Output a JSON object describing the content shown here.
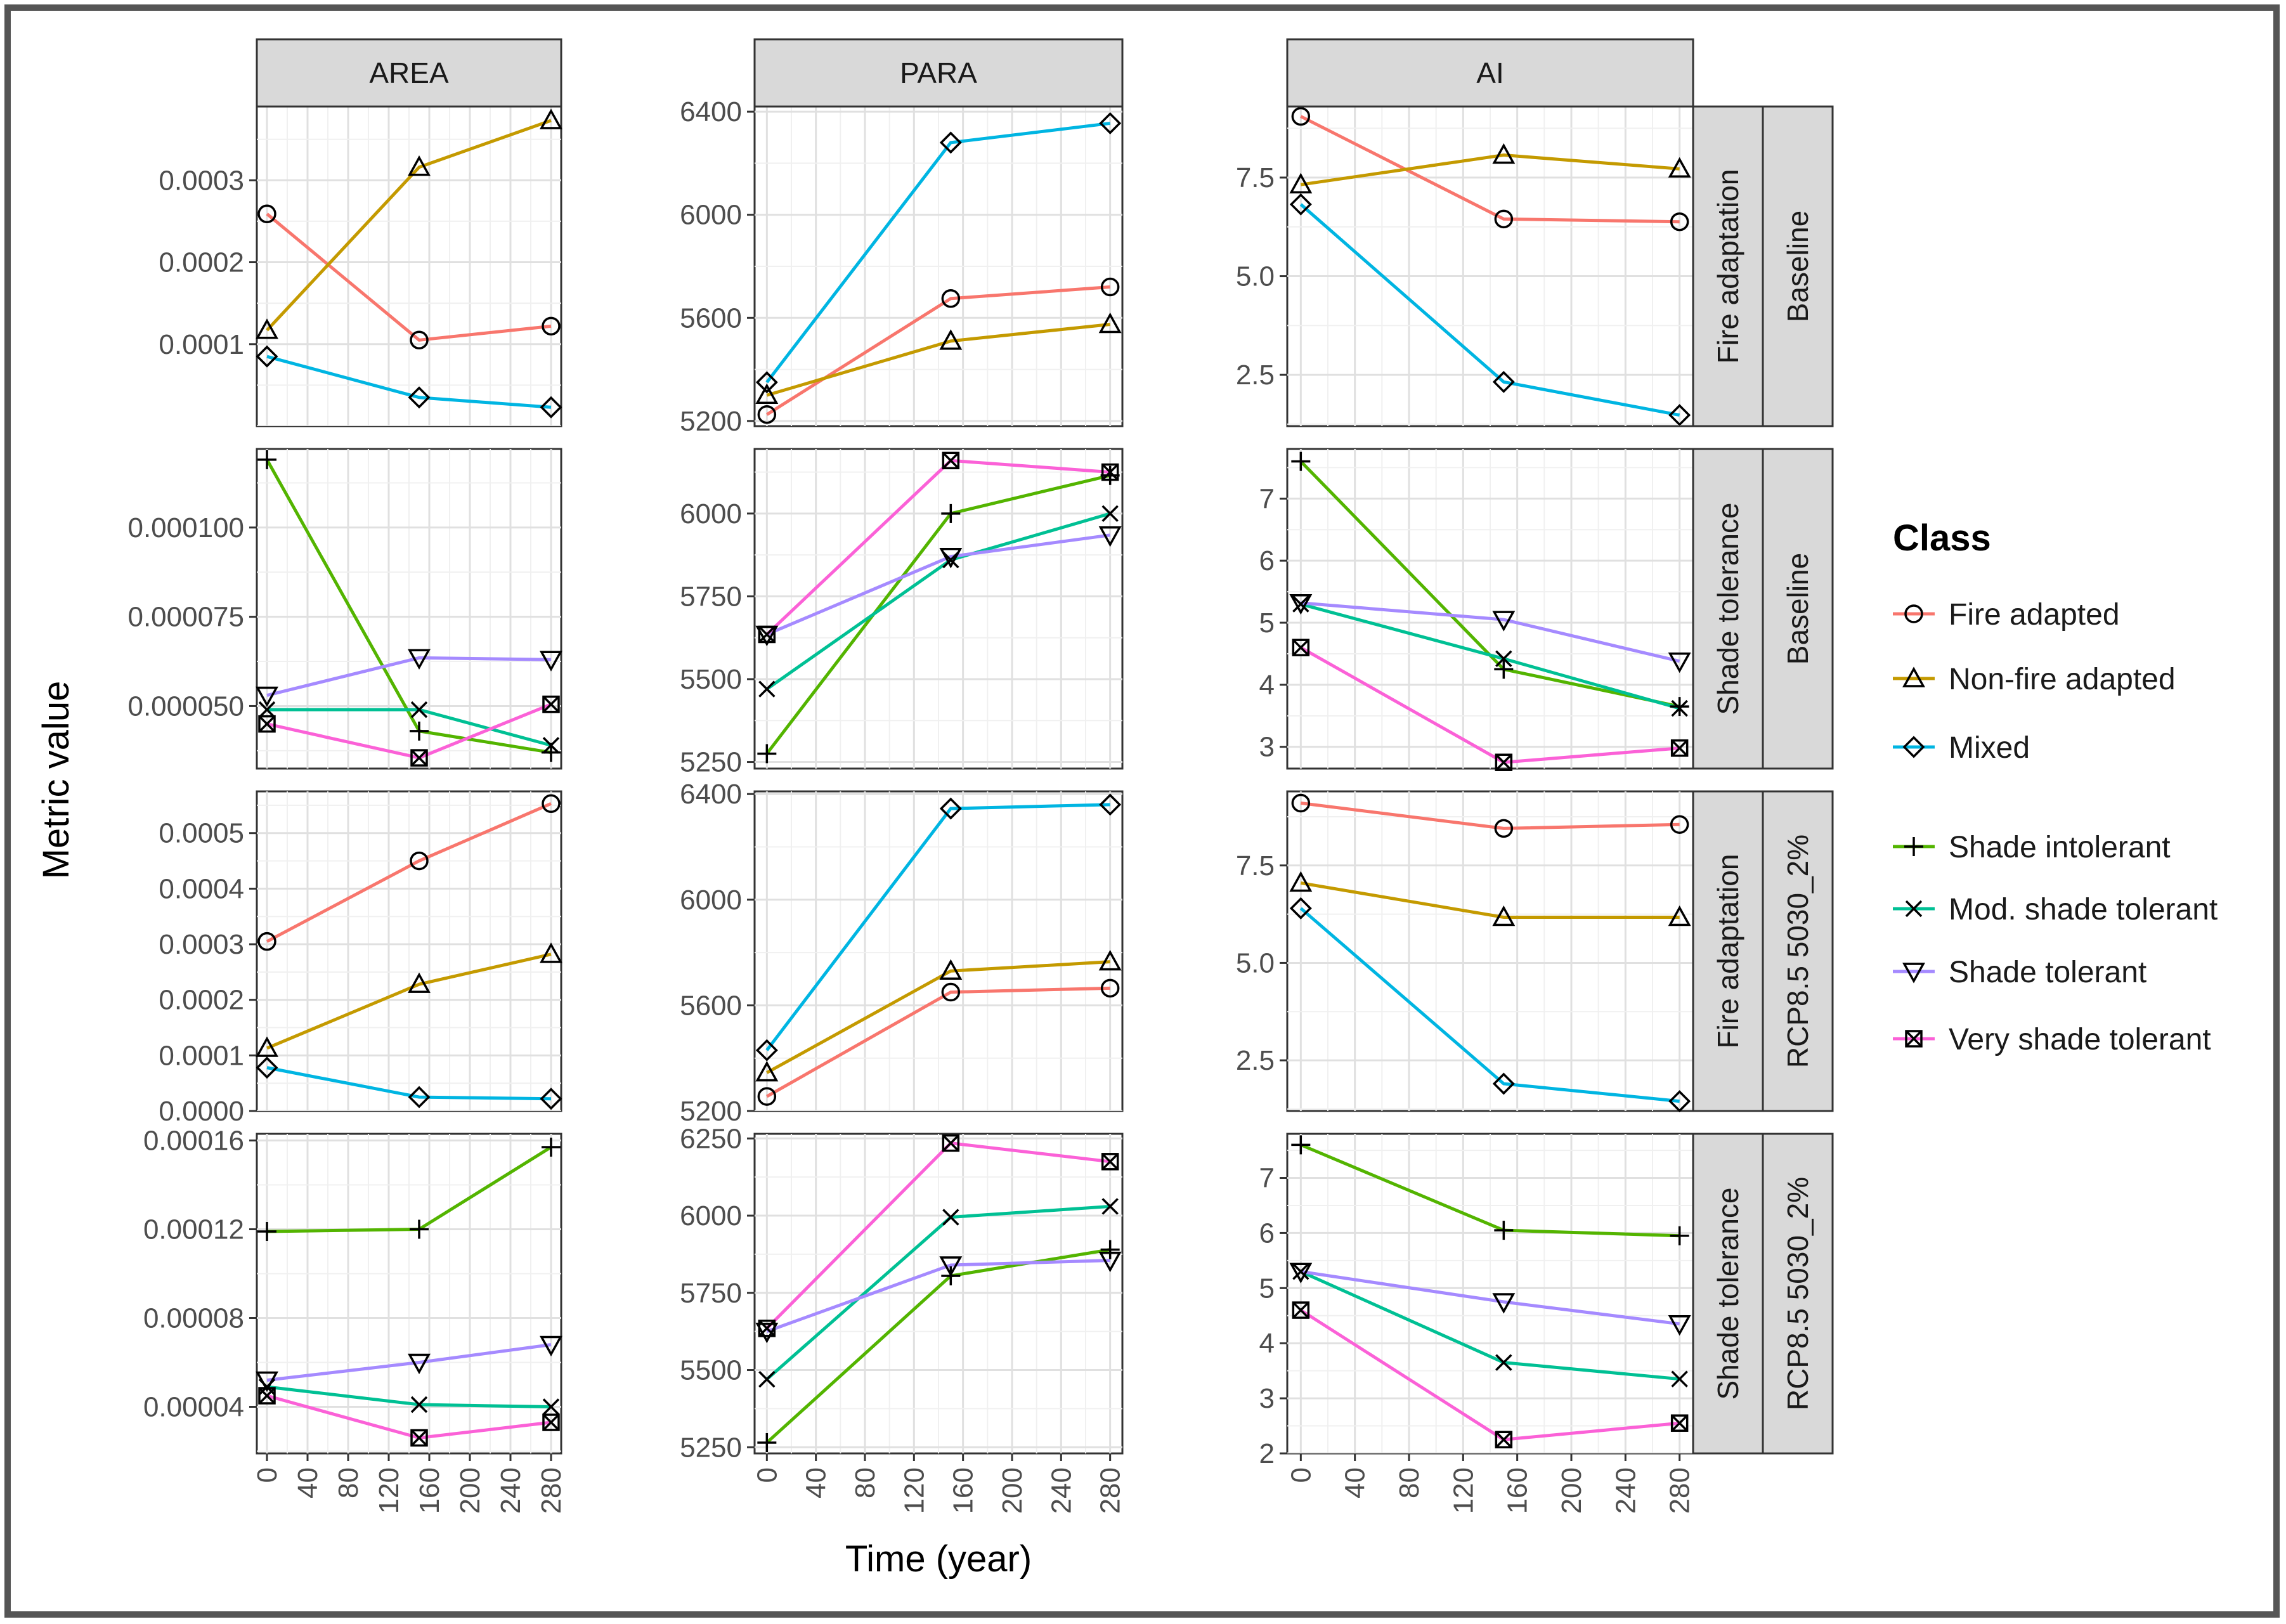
{
  "chart_data": {
    "type": "line",
    "xlabel": "Time (year)",
    "ylabel": "Metric value",
    "x_ticks": [
      0,
      40,
      80,
      120,
      160,
      200,
      240,
      280
    ],
    "xlim": [
      -10,
      290
    ],
    "x": [
      0,
      150,
      280
    ],
    "legend": {
      "title": "Class",
      "position": "right",
      "groups": [
        [
          "Fire adapted",
          "Non-fire adapted",
          "Mixed"
        ],
        [
          "Shade intolerant",
          "Mod. shade tolerant",
          "Shade tolerant",
          "Very shade tolerant"
        ]
      ]
    },
    "colors": {
      "Fire adapted": "#f8766d",
      "Non-fire adapted": "#c49a00",
      "Mixed": "#00b5e2",
      "Shade intolerant": "#53b400",
      "Mod. shade tolerant": "#00c094",
      "Shade tolerant": "#a58aff",
      "Very shade tolerant": "#fb61d7"
    },
    "markers": {
      "Fire adapted": "circle",
      "Non-fire adapted": "triangle-up",
      "Mixed": "diamond",
      "Shade intolerant": "plus",
      "Mod. shade tolerant": "cross",
      "Shade tolerant": "triangle-down",
      "Very shade tolerant": "square-x"
    },
    "column_strips": [
      "AREA",
      "PARA",
      "AI"
    ],
    "row_strips": [
      [
        "Fire adaptation",
        "Baseline"
      ],
      [
        "Shade tolerance",
        "Baseline"
      ],
      [
        "Fire adaptation",
        "RCP8.5 5030_2%"
      ],
      [
        "Shade tolerance",
        "RCP8.5 5030_2%"
      ]
    ],
    "panels": [
      {
        "row": 0,
        "col": 0,
        "ylim": [
          0.0,
          0.00039
        ],
        "ticks": [
          0.0001,
          0.0002,
          0.0003
        ],
        "tick_labels": [
          "0.0001",
          "0.0002",
          "0.0003"
        ],
        "series": [
          {
            "name": "Fire adapted",
            "values": [
              0.000259,
              0.000105,
              0.000122
            ]
          },
          {
            "name": "Non-fire adapted",
            "values": [
              0.000117,
              0.000316,
              0.000373
            ]
          },
          {
            "name": "Mixed",
            "values": [
              8.5e-05,
              3.5e-05,
              2.3e-05
            ]
          }
        ]
      },
      {
        "row": 0,
        "col": 1,
        "ylim": [
          5180,
          6420
        ],
        "ticks": [
          5200,
          5600,
          6000,
          6400
        ],
        "tick_labels": [
          "5200",
          "5600",
          "6000",
          "6400"
        ],
        "series": [
          {
            "name": "Fire adapted",
            "values": [
              5225,
              5675,
              5720
            ]
          },
          {
            "name": "Non-fire adapted",
            "values": [
              5300,
              5510,
              5575
            ]
          },
          {
            "name": "Mixed",
            "values": [
              5350,
              6280,
              6355
            ]
          }
        ]
      },
      {
        "row": 0,
        "col": 2,
        "ylim": [
          1.2,
          9.3
        ],
        "ticks": [
          2.5,
          5.0,
          7.5
        ],
        "tick_labels": [
          "2.5",
          "5.0",
          "7.5"
        ],
        "series": [
          {
            "name": "Fire adapted",
            "values": [
              9.05,
              6.45,
              6.38
            ]
          },
          {
            "name": "Non-fire adapted",
            "values": [
              7.32,
              8.07,
              7.72
            ]
          },
          {
            "name": "Mixed",
            "values": [
              6.82,
              2.32,
              1.48
            ]
          }
        ]
      },
      {
        "row": 1,
        "col": 0,
        "ylim": [
          3.25e-05,
          0.000122
        ],
        "ticks": [
          5e-05,
          7.5e-05,
          0.0001
        ],
        "tick_labels": [
          "0.000050",
          "0.000075",
          "0.000100"
        ],
        "series": [
          {
            "name": "Shade intolerant",
            "values": [
              0.000119,
              4.3e-05,
              3.7e-05
            ]
          },
          {
            "name": "Mod. shade tolerant",
            "values": [
              4.9e-05,
              4.9e-05,
              3.9e-05
            ]
          },
          {
            "name": "Shade tolerant",
            "values": [
              5.3e-05,
              6.35e-05,
              6.3e-05
            ]
          },
          {
            "name": "Very shade tolerant",
            "values": [
              4.5e-05,
              3.55e-05,
              5.05e-05
            ]
          }
        ]
      },
      {
        "row": 1,
        "col": 1,
        "ylim": [
          5230,
          6195
        ],
        "ticks": [
          5250,
          5500,
          5750,
          6000
        ],
        "tick_labels": [
          "5250",
          "5500",
          "5750",
          "6000"
        ],
        "series": [
          {
            "name": "Shade intolerant",
            "values": [
              5275,
              6000,
              6115
            ]
          },
          {
            "name": "Mod. shade tolerant",
            "values": [
              5470,
              5860,
              6000
            ]
          },
          {
            "name": "Shade tolerant",
            "values": [
              5635,
              5870,
              5935
            ]
          },
          {
            "name": "Very shade tolerant",
            "values": [
              5635,
              6160,
              6125
            ]
          }
        ]
      },
      {
        "row": 1,
        "col": 2,
        "ylim": [
          2.65,
          7.8
        ],
        "ticks": [
          3,
          4,
          5,
          6,
          7
        ],
        "tick_labels": [
          "3",
          "4",
          "5",
          "6",
          "7"
        ],
        "series": [
          {
            "name": "Shade intolerant",
            "values": [
              7.6,
              4.25,
              3.65
            ]
          },
          {
            "name": "Mod. shade tolerant",
            "values": [
              5.3,
              4.42,
              3.62
            ]
          },
          {
            "name": "Shade tolerant",
            "values": [
              5.32,
              5.05,
              4.38
            ]
          },
          {
            "name": "Very shade tolerant",
            "values": [
              4.6,
              2.75,
              2.98
            ]
          }
        ]
      },
      {
        "row": 2,
        "col": 0,
        "ylim": [
          0,
          0.000575
        ],
        "ticks": [
          0.0,
          0.0001,
          0.0002,
          0.0003,
          0.0004,
          0.0005
        ],
        "tick_labels": [
          "0.0000",
          "0.0001",
          "0.0002",
          "0.0003",
          "0.0004",
          "0.0005"
        ],
        "series": [
          {
            "name": "Fire adapted",
            "values": [
              0.000305,
              0.00045,
              0.000553
            ]
          },
          {
            "name": "Non-fire adapted",
            "values": [
              0.000113,
              0.000228,
              0.000282
            ]
          },
          {
            "name": "Mixed",
            "values": [
              7.8e-05,
              2.5e-05,
              2.2e-05
            ]
          }
        ]
      },
      {
        "row": 2,
        "col": 1,
        "ylim": [
          5200,
          6410
        ],
        "ticks": [
          5200,
          5600,
          6000,
          6400
        ],
        "tick_labels": [
          "5200",
          "5600",
          "6000",
          "6400"
        ],
        "series": [
          {
            "name": "Fire adapted",
            "values": [
              5255,
              5650,
              5665
            ]
          },
          {
            "name": "Non-fire adapted",
            "values": [
              5345,
              5730,
              5765
            ]
          },
          {
            "name": "Mixed",
            "values": [
              5430,
              6345,
              6360
            ]
          }
        ]
      },
      {
        "row": 2,
        "col": 2,
        "ylim": [
          1.2,
          9.4
        ],
        "ticks": [
          2.5,
          5.0,
          7.5
        ],
        "tick_labels": [
          "2.5",
          "5.0",
          "7.5"
        ],
        "series": [
          {
            "name": "Fire adapted",
            "values": [
              9.1,
              8.45,
              8.55
            ]
          },
          {
            "name": "Non-fire adapted",
            "values": [
              7.05,
              6.17,
              6.17
            ]
          },
          {
            "name": "Mixed",
            "values": [
              6.4,
              1.9,
              1.45
            ]
          }
        ]
      },
      {
        "row": 3,
        "col": 0,
        "ylim": [
          1.9e-05,
          0.000163
        ],
        "ticks": [
          4e-05,
          8e-05,
          0.00012,
          0.00016
        ],
        "tick_labels": [
          "0.00004",
          "0.00008",
          "0.00012",
          "0.00016"
        ],
        "series": [
          {
            "name": "Shade intolerant",
            "values": [
              0.000119,
              0.00012,
              0.000157
            ]
          },
          {
            "name": "Mod. shade tolerant",
            "values": [
              4.9e-05,
              4.1e-05,
              4e-05
            ]
          },
          {
            "name": "Shade tolerant",
            "values": [
              5.2e-05,
              6e-05,
              6.8e-05
            ]
          },
          {
            "name": "Very shade tolerant",
            "values": [
              4.5e-05,
              2.6e-05,
              3.3e-05
            ]
          }
        ]
      },
      {
        "row": 3,
        "col": 1,
        "ylim": [
          5230,
          6265
        ],
        "ticks": [
          5250,
          5500,
          5750,
          6000,
          6250
        ],
        "tick_labels": [
          "5250",
          "5500",
          "5750",
          "6000",
          "6250"
        ],
        "series": [
          {
            "name": "Shade intolerant",
            "values": [
              5265,
              5805,
              5890
            ]
          },
          {
            "name": "Mod. shade tolerant",
            "values": [
              5470,
              5995,
              6030
            ]
          },
          {
            "name": "Shade tolerant",
            "values": [
              5625,
              5840,
              5855
            ]
          },
          {
            "name": "Very shade tolerant",
            "values": [
              5635,
              6235,
              6175
            ]
          }
        ]
      },
      {
        "row": 3,
        "col": 2,
        "ylim": [
          2.0,
          7.8
        ],
        "ticks": [
          2,
          3,
          4,
          5,
          6,
          7
        ],
        "tick_labels": [
          "2",
          "3",
          "4",
          "5",
          "6",
          "7"
        ],
        "series": [
          {
            "name": "Shade intolerant",
            "values": [
              7.6,
              6.05,
              5.95
            ]
          },
          {
            "name": "Mod. shade tolerant",
            "values": [
              5.3,
              3.65,
              3.35
            ]
          },
          {
            "name": "Shade tolerant",
            "values": [
              5.3,
              4.75,
              4.35
            ]
          },
          {
            "name": "Very shade tolerant",
            "values": [
              4.6,
              2.25,
              2.55
            ]
          }
        ]
      }
    ]
  }
}
